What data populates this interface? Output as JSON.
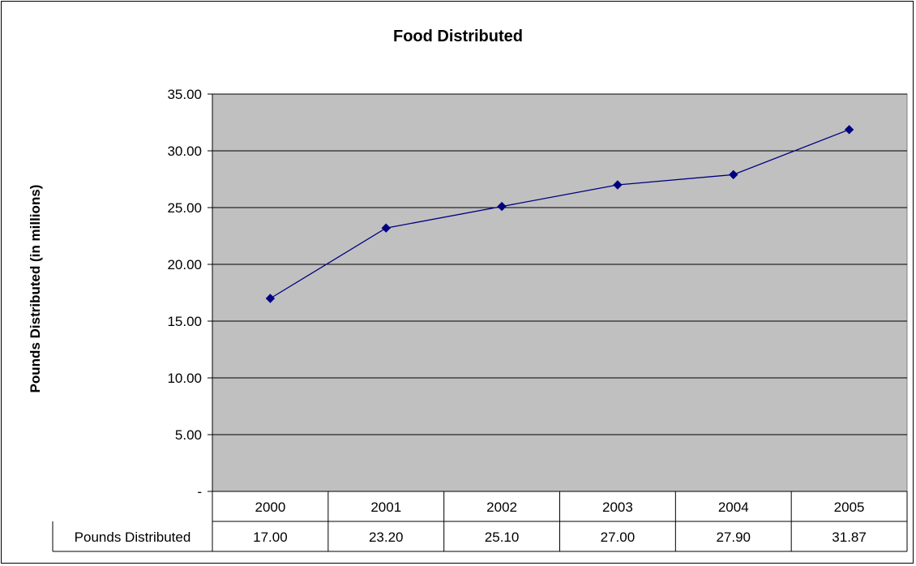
{
  "chart_data": {
    "type": "line",
    "title": "Food Distributed",
    "ylabel": "Pounds Distributed (in millions)",
    "xlabel": "",
    "categories": [
      "2000",
      "2001",
      "2002",
      "2003",
      "2004",
      "2005"
    ],
    "series": [
      {
        "name": "Pounds Distributed",
        "values": [
          17.0,
          23.2,
          25.1,
          27.0,
          27.9,
          31.87
        ]
      }
    ],
    "value_labels": [
      "17.00",
      "23.20",
      "25.10",
      "27.00",
      "27.90",
      "31.87"
    ],
    "ylim": [
      0,
      35
    ],
    "yticks": [
      0,
      5,
      10,
      15,
      20,
      25,
      30,
      35
    ],
    "ytick_labels": [
      "-",
      "5.00",
      "10.00",
      "15.00",
      "20.00",
      "25.00",
      "30.00",
      "35.00"
    ],
    "grid": true,
    "data_table": true,
    "colors": {
      "plot_background": "#c0c0c0",
      "line": "#000080",
      "marker": "#000080",
      "grid": "#000000"
    }
  }
}
